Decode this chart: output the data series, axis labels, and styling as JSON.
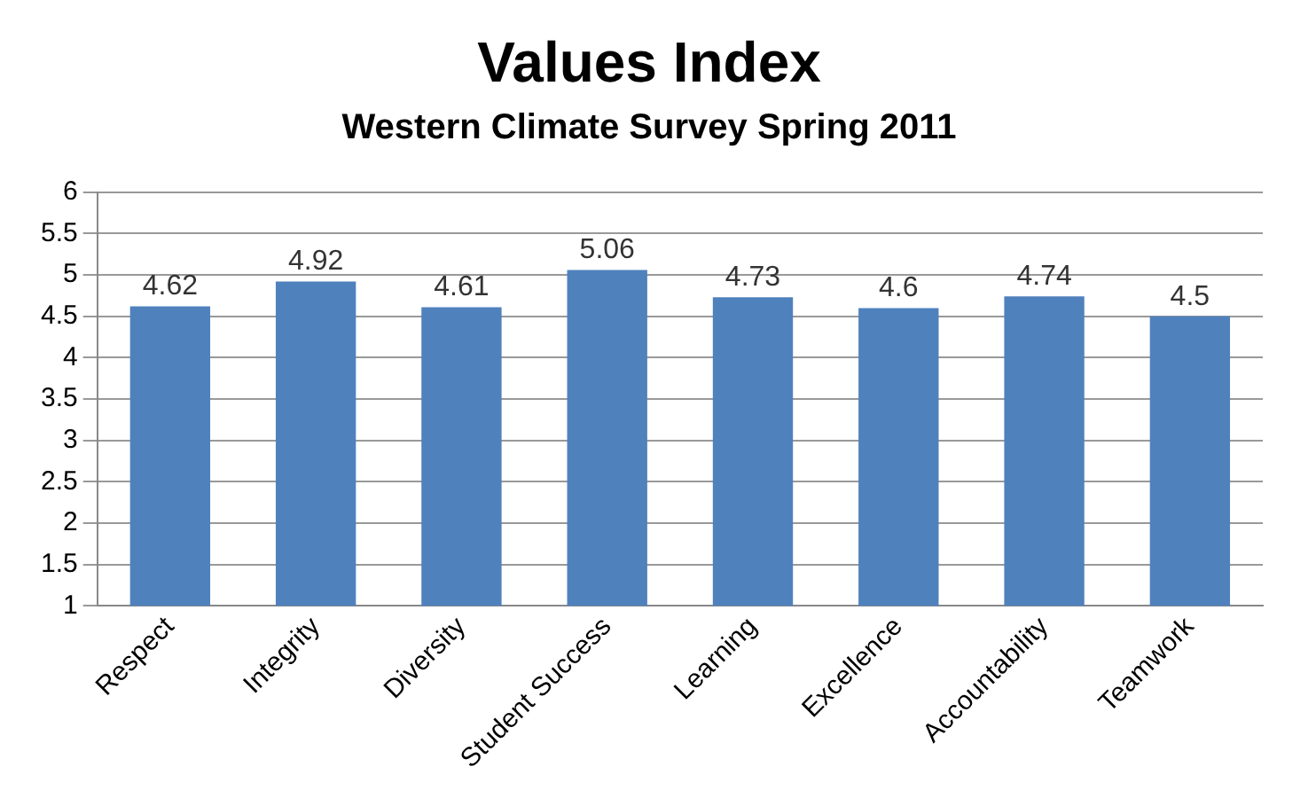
{
  "chart_data": {
    "type": "bar",
    "title": "Values Index",
    "subtitle": "Western Climate Survey Spring 2011",
    "categories": [
      "Respect",
      "Integrity",
      "Diversity",
      "Student Success",
      "Learning",
      "Excellence",
      "Accountability",
      "Teamwork"
    ],
    "values": [
      4.62,
      4.92,
      4.61,
      5.06,
      4.73,
      4.6,
      4.74,
      4.5
    ],
    "color": "#4f81bd",
    "ylim": [
      1,
      6
    ],
    "yticks": [
      1,
      1.5,
      2,
      2.5,
      3,
      3.5,
      4,
      4.5,
      5,
      5.5,
      6
    ],
    "grid": "y",
    "data_labels": true
  }
}
